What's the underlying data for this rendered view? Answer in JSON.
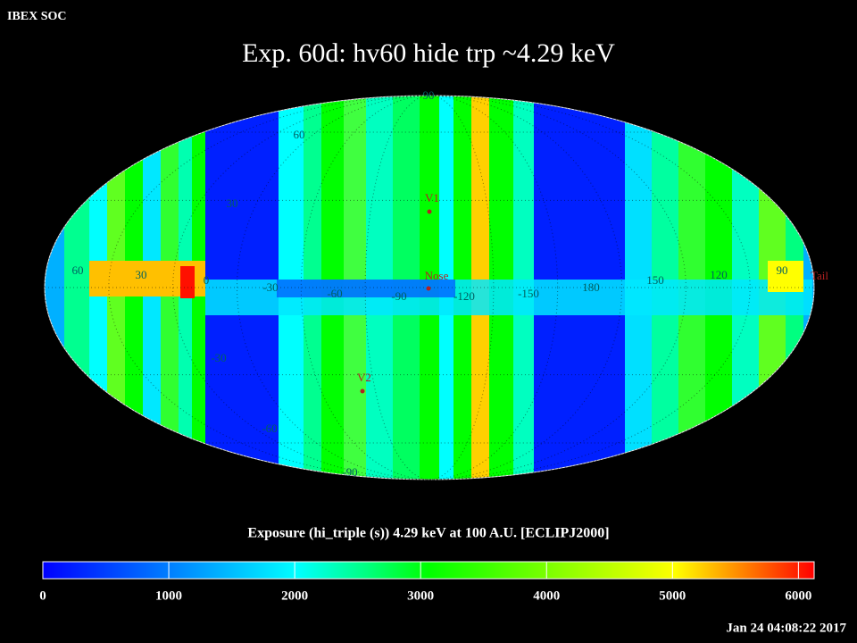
{
  "header": {
    "org": "IBEX SOC",
    "title": "Exp.   60d: hv60 hide trp ~4.29 keV"
  },
  "map": {
    "longitude_labels": [
      60,
      30,
      0,
      -30,
      -60,
      -90,
      -120,
      -150,
      180,
      150,
      120,
      90
    ],
    "latitude_labels": [
      90,
      60,
      30,
      -30,
      -60,
      -90
    ],
    "markers": [
      "V1",
      "Nose",
      "V2",
      "Tail"
    ]
  },
  "colorbar": {
    "title": "Exposure (hi_triple (s))  4.29 keV at 100 A.U. [ECLIPJ2000]",
    "range": [
      0,
      6125
    ],
    "ticks": [
      0,
      1000,
      2000,
      3000,
      4000,
      5000,
      6000
    ]
  },
  "footer": {
    "timestamp": "Jan 24 04:08:22 2017"
  }
}
